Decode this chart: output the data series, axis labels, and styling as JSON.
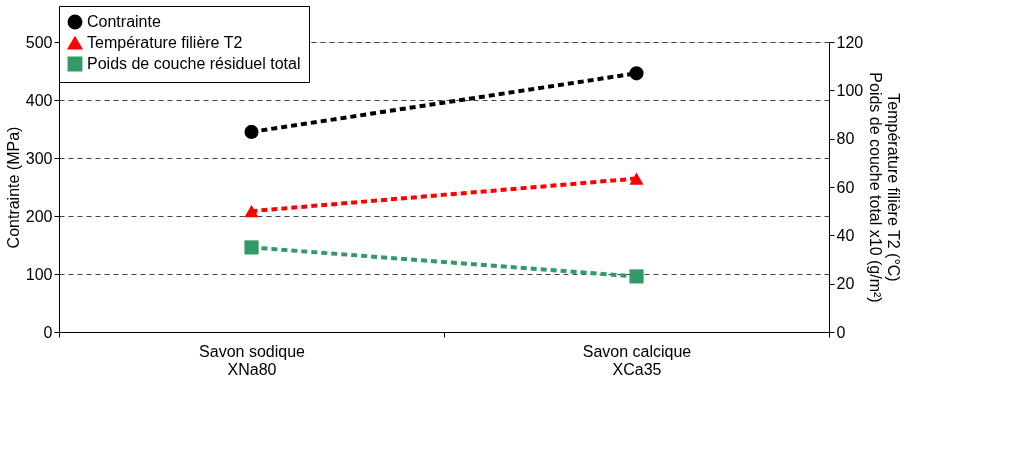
{
  "chart_data": {
    "type": "line",
    "categories": [
      "Savon sodique\nXNa80",
      "Savon calcique\nXCa35"
    ],
    "series": [
      {
        "name": "Contrainte",
        "color": "#000000",
        "marker": "circle",
        "values": [
          345,
          446
        ]
      },
      {
        "name": "Température filière T2",
        "color": "#ff0000",
        "marker": "triangle",
        "axis": "y2",
        "values": [
          50,
          63.5
        ]
      },
      {
        "name": "Poids de couche résiduel total",
        "color": "#339966",
        "marker": "square",
        "axis": "y2",
        "values": [
          35,
          23
        ]
      }
    ],
    "ylabel": "Contrainte (MPa)",
    "y2label": "Température filière T2 (°C)\nPoids de couche total x10 (g/m²)",
    "ylim": [
      0,
      500
    ],
    "yticks": [
      0,
      100,
      200,
      300,
      400,
      500
    ],
    "y2lim": [
      0,
      120
    ],
    "y2ticks": [
      0,
      20,
      40,
      60,
      80,
      100,
      120
    ],
    "grid": "y",
    "legend": "top",
    "line_style": "dashed"
  }
}
